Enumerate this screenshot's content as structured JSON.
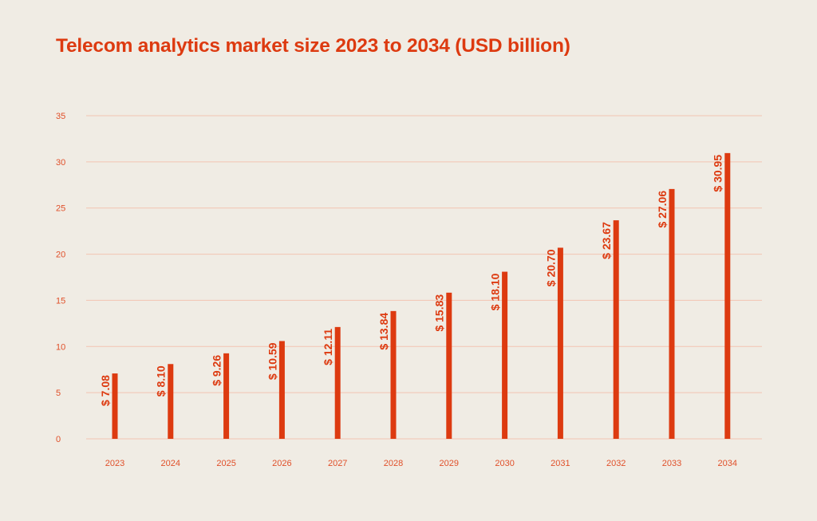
{
  "chart_data": {
    "type": "bar",
    "title": "Telecom analytics market size 2023 to 2034 (USD billion)",
    "xlabel": "",
    "ylabel": "",
    "categories": [
      "2023",
      "2024",
      "2025",
      "2026",
      "2027",
      "2028",
      "2029",
      "2030",
      "2031",
      "2032",
      "2033",
      "2034"
    ],
    "values": [
      7.08,
      8.1,
      9.26,
      10.59,
      12.11,
      13.84,
      15.83,
      18.1,
      20.7,
      23.67,
      27.06,
      30.95
    ],
    "data_labels": [
      "$ 7.08",
      "$ 8.10",
      "$ 9.26",
      "$ 10.59",
      "$ 12.11",
      "$ 13.84",
      "$ 15.83",
      "$ 18.10",
      "$ 20.70",
      "$ 23.67",
      "$ 27.06",
      "$ 30.95"
    ],
    "ylim": [
      0,
      35
    ],
    "yticks": [
      0,
      5,
      10,
      15,
      20,
      25,
      30,
      35
    ],
    "grid": "horizontal",
    "legend": "none",
    "colors": {
      "bar": "#dd3a10",
      "grid": "#f2c4b2",
      "background": "#f0ece4",
      "text": "#e0502a"
    }
  }
}
